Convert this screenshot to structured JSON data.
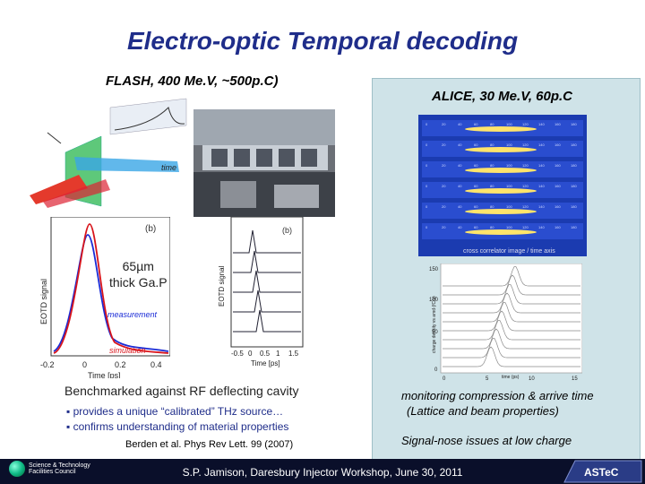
{
  "slide": {
    "title": "Electro-optic Temporal decoding",
    "left_subtitle": "FLASH, 400 Me.V, ~500p.C)",
    "right_subtitle": "ALICE, 30 Me.V, 60p.C",
    "gap_label_line1": "65µm",
    "gap_label_line2": "thick Ga.P",
    "benchmark": "Benchmarked against RF deflecting cavity",
    "bullets": [
      "provides a unique “calibrated” THz source…",
      "confirms understanding of material properties"
    ],
    "citation": "Berden et al. Phys Rev Lett. 99 (2007)",
    "right_notes": [
      "monitoring compression & arrive time",
      "(Lattice and beam properties)",
      "Signal-nose issues at low charge"
    ],
    "footer": "S.P. Jamison, Daresbury Injector Workshop, June 30, 2011",
    "footer_logo_left_line1": "Science & Technology",
    "footer_logo_left_line2": "Facilities Council",
    "footer_logo_right": "ASTeC"
  },
  "figures": {
    "schematic_axis_label": "time",
    "plot_b_label": "(b)",
    "plot_left_ylabel": "EOTD signal",
    "plot_left_xlabel": "Time [ps]",
    "plot_left_ticks": [
      "-0.2",
      "0",
      "0.2",
      "0.4"
    ],
    "plot_left_legend_measurement": "measurement",
    "plot_left_legend_simulation": "simulation",
    "plot_mid_ylabel": "EOTD signal",
    "plot_mid_xlabel": "Time [ps]",
    "plot_mid_ticks": [
      "-0.5",
      "0",
      "0.5",
      "1",
      "1.5"
    ],
    "streak_caption": "cross correlator image / time axis",
    "streak_ticks": [
      "0",
      "20",
      "40",
      "60",
      "80",
      "100",
      "120",
      "140",
      "160",
      "180"
    ],
    "traces_ylabel": "charge density vs amd (fC/s)",
    "traces_xlabel": "time (ps)",
    "traces_yticks": [
      "150",
      "100",
      "50",
      "0"
    ],
    "traces_xticks": [
      "0",
      "5",
      "10",
      "15"
    ]
  },
  "colors": {
    "title": "#1f2d8a",
    "panel_bg": "#cfe3e8",
    "footer_bg": "#0a0f2a",
    "measurement": "#1a2bd6",
    "simulation": "#d8141b"
  }
}
